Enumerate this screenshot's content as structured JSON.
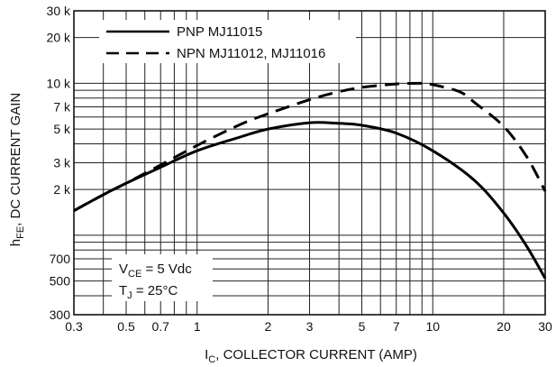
{
  "chart_data": {
    "type": "line",
    "x_scale": "log",
    "y_scale": "log",
    "xlim": [
      0.3,
      30
    ],
    "ylim": [
      300,
      30000
    ],
    "grid": true,
    "xlabel": {
      "main": "I",
      "sub": "C",
      "rest": ", COLLECTOR CURRENT (AMP)"
    },
    "ylabel": {
      "main": "h",
      "sub": "FE",
      "rest": ", DC CURRENT GAIN"
    },
    "x_ticks": [
      {
        "value": 0.3,
        "label": "0.3"
      },
      {
        "value": 0.5,
        "label": "0.5"
      },
      {
        "value": 0.7,
        "label": "0.7"
      },
      {
        "value": 1,
        "label": "1"
      },
      {
        "value": 2,
        "label": "2"
      },
      {
        "value": 3,
        "label": "3"
      },
      {
        "value": 5,
        "label": "5"
      },
      {
        "value": 7,
        "label": "7"
      },
      {
        "value": 10,
        "label": "10"
      },
      {
        "value": 20,
        "label": "20"
      },
      {
        "value": 30,
        "label": "30"
      }
    ],
    "y_ticks": [
      {
        "value": 300,
        "label": "300"
      },
      {
        "value": 500,
        "label": "500"
      },
      {
        "value": 700,
        "label": "700"
      },
      {
        "value": 2000,
        "label": "2 k"
      },
      {
        "value": 3000,
        "label": "3 k"
      },
      {
        "value": 5000,
        "label": "5 k"
      },
      {
        "value": 7000,
        "label": "7 k"
      },
      {
        "value": 10000,
        "label": "10 k"
      },
      {
        "value": 20000,
        "label": "20 k"
      },
      {
        "value": 30000,
        "label": "30 k"
      }
    ],
    "legend_position": "top-left",
    "series": [
      {
        "name": "PNP MJ11015",
        "style": "solid",
        "points": [
          [
            0.3,
            1450
          ],
          [
            0.4,
            1850
          ],
          [
            0.5,
            2200
          ],
          [
            0.7,
            2800
          ],
          [
            1,
            3600
          ],
          [
            1.5,
            4400
          ],
          [
            2,
            5000
          ],
          [
            3,
            5500
          ],
          [
            4,
            5450
          ],
          [
            5,
            5300
          ],
          [
            7,
            4700
          ],
          [
            10,
            3600
          ],
          [
            15,
            2300
          ],
          [
            20,
            1400
          ],
          [
            25,
            850
          ],
          [
            30,
            520
          ]
        ]
      },
      {
        "name": "NPN MJ11012, MJ11016",
        "style": "dashed",
        "points": [
          [
            0.3,
            1450
          ],
          [
            0.4,
            1850
          ],
          [
            0.5,
            2200
          ],
          [
            0.7,
            2900
          ],
          [
            1,
            3900
          ],
          [
            1.5,
            5300
          ],
          [
            2,
            6300
          ],
          [
            3,
            7800
          ],
          [
            4,
            8800
          ],
          [
            5,
            9400
          ],
          [
            7,
            9900
          ],
          [
            9,
            10000
          ],
          [
            10,
            9800
          ],
          [
            13,
            8800
          ],
          [
            15,
            7500
          ],
          [
            20,
            5200
          ],
          [
            25,
            3300
          ],
          [
            30,
            1950
          ]
        ]
      }
    ],
    "annotations": [
      {
        "main": "V",
        "sub": "CE",
        "rest": " = 5 Vdc"
      },
      {
        "main": "T",
        "sub": "J",
        "rest": " = 25°C"
      }
    ]
  }
}
